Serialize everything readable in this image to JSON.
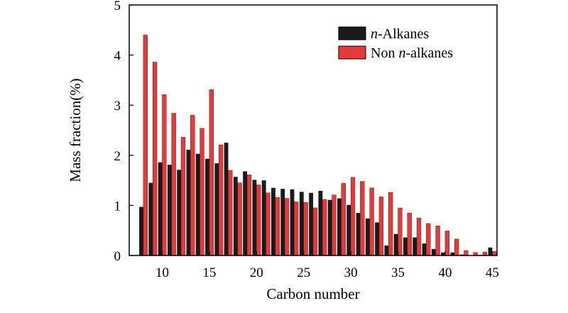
{
  "chart_data": {
    "type": "bar",
    "xlabel": "Carbon number",
    "ylabel": "Mass fraction(%)",
    "ylim": [
      0,
      5
    ],
    "xlim": [
      6.5,
      45.5
    ],
    "xticks": [
      10,
      15,
      20,
      25,
      30,
      35,
      40,
      45
    ],
    "yticks": [
      0,
      1,
      2,
      3,
      4,
      5
    ],
    "legend_position": "top-right",
    "x": [
      8,
      9,
      10,
      11,
      12,
      13,
      14,
      15,
      16,
      17,
      18,
      19,
      20,
      21,
      22,
      23,
      24,
      25,
      26,
      27,
      28,
      29,
      30,
      31,
      32,
      33,
      34,
      35,
      36,
      37,
      38,
      39,
      40,
      41,
      42,
      43,
      44,
      45
    ],
    "series": [
      {
        "name": "n-Alkanes",
        "name_italic": "n",
        "name_rest": "-Alkanes",
        "color": "#1a1a1a",
        "values": [
          0.97,
          1.45,
          1.86,
          1.81,
          1.71,
          2.11,
          2.03,
          1.93,
          1.84,
          2.25,
          1.57,
          1.68,
          1.51,
          1.5,
          1.35,
          1.33,
          1.32,
          1.27,
          1.25,
          1.29,
          1.11,
          1.14,
          1.01,
          0.85,
          0.74,
          0.66,
          0.2,
          0.43,
          0.36,
          0.36,
          0.24,
          0.13,
          0.06,
          0.06,
          0.02,
          0.0,
          0.01,
          0.16
        ]
      },
      {
        "name": "Non n-alkanes",
        "name_pre": "Non ",
        "name_italic": "n",
        "name_rest": "-alkanes",
        "color": "#e8393a",
        "values": [
          4.4,
          3.86,
          3.21,
          2.84,
          2.36,
          2.8,
          2.54,
          3.31,
          2.21,
          1.7,
          1.45,
          1.61,
          1.41,
          1.25,
          1.16,
          1.14,
          1.07,
          1.06,
          0.95,
          1.12,
          1.21,
          1.44,
          1.56,
          1.48,
          1.35,
          1.17,
          1.26,
          0.95,
          0.85,
          0.75,
          0.64,
          0.59,
          0.49,
          0.33,
          0.1,
          0.06,
          0.07,
          0.08
        ]
      }
    ]
  }
}
